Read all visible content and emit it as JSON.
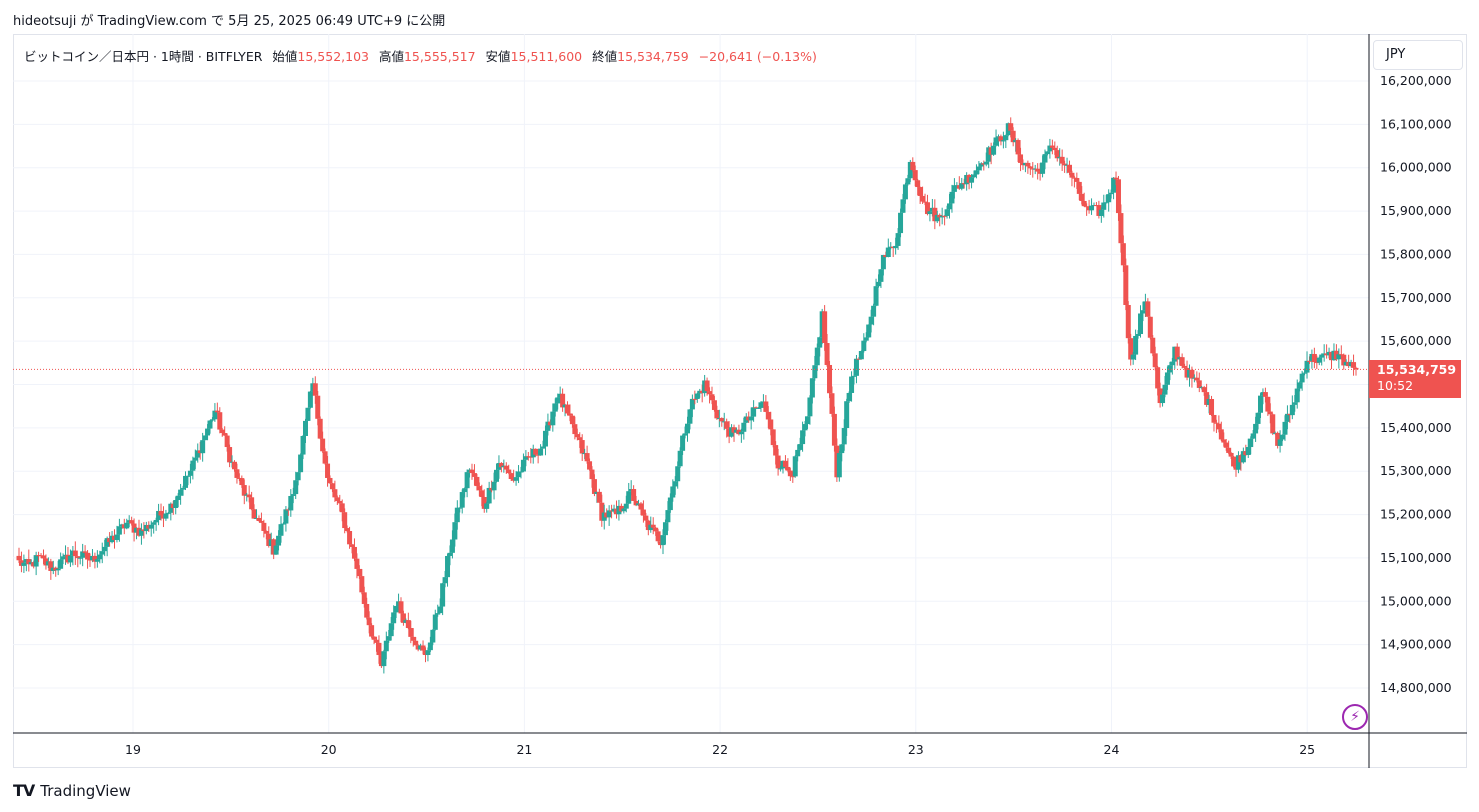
{
  "header": {
    "text": "hideotsuji が TradingView.com で 5月 25, 2025 06:49 UTC+9 に公開"
  },
  "legend": {
    "symbol": "ビットコイン／日本円 · 1時間 · BITFLYER",
    "open_label": "始値",
    "open": "15,552,103",
    "high_label": "高値",
    "high": "15,555,517",
    "low_label": "安値",
    "low": "15,511,600",
    "close_label": "終値",
    "close": "15,534,759",
    "change": "−20,641 (−0.13%)"
  },
  "currency": "JPY",
  "price_tag": {
    "price": "15,534,759",
    "countdown": "10:52"
  },
  "footer": {
    "brand": "TradingView"
  },
  "colors": {
    "up": "#26a69a",
    "down": "#ef5350",
    "grid": "#f0f3fa",
    "axis_text": "#131722",
    "price_line": "#ef5350"
  },
  "chart_data": {
    "type": "candlestick",
    "interval": "1h",
    "ylim": [
      14700000,
      16250000
    ],
    "y_ticks": [
      "14,800,000",
      "14,900,000",
      "15,000,000",
      "15,100,000",
      "15,200,000",
      "15,300,000",
      "15,400,000",
      "15,500,000",
      "15,600,000",
      "15,700,000",
      "15,800,000",
      "15,900,000",
      "16,000,000",
      "16,100,000",
      "16,200,000"
    ],
    "x_ticks": [
      "19",
      "20",
      "21",
      "22",
      "23",
      "24",
      "25"
    ],
    "last_price": 15534759,
    "path": [
      [
        15090000,
        0
      ],
      [
        15080000,
        4
      ],
      [
        15100000,
        8
      ],
      [
        15075000,
        14
      ],
      [
        15110000,
        22
      ],
      [
        15095000,
        30
      ],
      [
        15180000,
        44
      ],
      [
        15160000,
        50
      ],
      [
        15190000,
        56
      ],
      [
        15220000,
        62
      ],
      [
        15300000,
        70
      ],
      [
        15440000,
        80
      ],
      [
        15300000,
        88
      ],
      [
        15200000,
        96
      ],
      [
        15120000,
        104
      ],
      [
        15250000,
        112
      ],
      [
        15500000,
        120
      ],
      [
        15280000,
        126
      ],
      [
        15200000,
        132
      ],
      [
        15080000,
        138
      ],
      [
        14970000,
        142
      ],
      [
        14850000,
        148
      ],
      [
        15000000,
        154
      ],
      [
        14930000,
        160
      ],
      [
        14870000,
        166
      ],
      [
        15000000,
        172
      ],
      [
        15180000,
        178
      ],
      [
        15310000,
        184
      ],
      [
        15220000,
        190
      ],
      [
        15320000,
        196
      ],
      [
        15280000,
        202
      ],
      [
        15330000,
        208
      ],
      [
        15360000,
        214
      ],
      [
        15480000,
        220
      ],
      [
        15400000,
        226
      ],
      [
        15320000,
        232
      ],
      [
        15200000,
        238
      ],
      [
        15200000,
        244
      ],
      [
        15250000,
        250
      ],
      [
        15180000,
        256
      ],
      [
        15140000,
        262
      ],
      [
        15290000,
        268
      ],
      [
        15450000,
        274
      ],
      [
        15500000,
        280
      ],
      [
        15420000,
        286
      ],
      [
        15380000,
        292
      ],
      [
        15420000,
        298
      ],
      [
        15460000,
        304
      ],
      [
        15320000,
        310
      ],
      [
        15300000,
        316
      ],
      [
        15420000,
        322
      ],
      [
        15660000,
        328
      ],
      [
        15300000,
        334
      ],
      [
        15520000,
        340
      ],
      [
        15600000,
        346
      ],
      [
        15780000,
        352
      ],
      [
        15830000,
        358
      ],
      [
        16020000,
        364
      ],
      [
        15910000,
        370
      ],
      [
        15880000,
        376
      ],
      [
        15950000,
        382
      ],
      [
        15990000,
        390
      ],
      [
        16050000,
        398
      ],
      [
        16090000,
        404
      ],
      [
        16010000,
        410
      ],
      [
        15990000,
        416
      ],
      [
        16050000,
        422
      ],
      [
        15980000,
        430
      ],
      [
        15900000,
        436
      ],
      [
        15900000,
        442
      ],
      [
        15980000,
        448
      ],
      [
        15550000,
        454
      ],
      [
        15700000,
        460
      ],
      [
        15450000,
        466
      ],
      [
        15580000,
        472
      ],
      [
        15520000,
        478
      ],
      [
        15480000,
        484
      ],
      [
        15400000,
        490
      ],
      [
        15310000,
        496
      ],
      [
        15360000,
        502
      ],
      [
        15480000,
        508
      ],
      [
        15360000,
        514
      ],
      [
        15450000,
        520
      ],
      [
        15560000,
        526
      ],
      [
        15560000,
        532
      ],
      [
        15570000,
        538
      ],
      [
        15530000,
        546
      ]
    ]
  }
}
